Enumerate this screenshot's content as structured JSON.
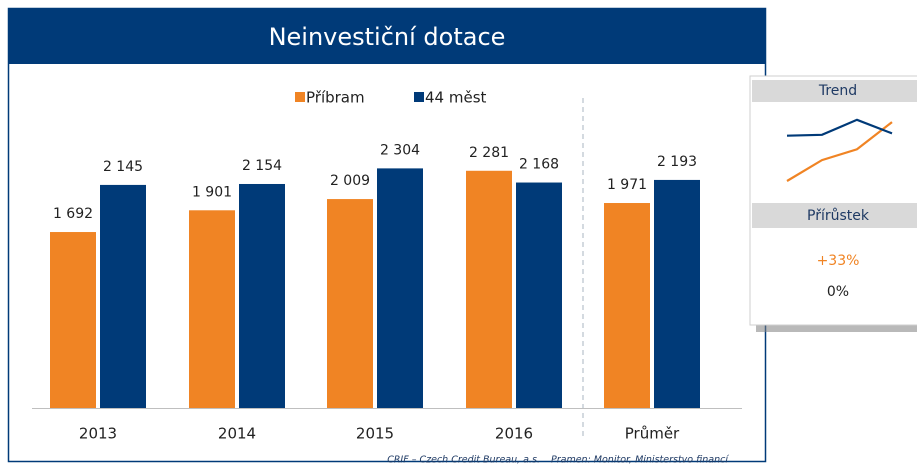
{
  "chart_data": {
    "type": "bar",
    "title": "Neinvestiční dotace",
    "categories": [
      "2013",
      "2014",
      "2015",
      "2016",
      "Průměr"
    ],
    "series": [
      {
        "name": "Příbram",
        "color": "#f08424",
        "values": [
          1692,
          1901,
          2009,
          2281,
          1971
        ],
        "value_labels": [
          "1 692",
          "1 901",
          "2 009",
          "2 281",
          "1 971"
        ]
      },
      {
        "name": "44 měst",
        "color": "#003a78",
        "values": [
          2145,
          2154,
          2304,
          2168,
          2193
        ],
        "value_labels": [
          "2 145",
          "2 154",
          "2 304",
          "2 168",
          "2 193"
        ]
      }
    ],
    "source": "CRIF – Czech Credit Bureau, a.s.",
    "note": "Pramen: Monitor, Ministerstvo financí"
  },
  "panel": {
    "trend_label": "Trend",
    "growth_label": "Přírůstek",
    "growth": [
      "+33%",
      "0%"
    ]
  }
}
